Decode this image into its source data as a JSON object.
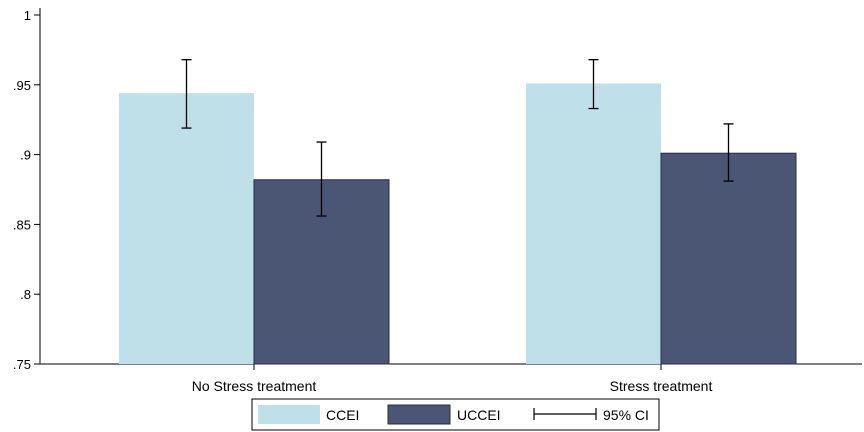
{
  "chart_data": {
    "type": "bar",
    "categories": [
      "No Stress treatment",
      "Stress treatment"
    ],
    "series": [
      {
        "name": "CCEI",
        "color": "#bfe0e8",
        "values": [
          0.944,
          0.951
        ],
        "ci_low": [
          0.919,
          0.933
        ],
        "ci_high": [
          0.968,
          0.968
        ]
      },
      {
        "name": "UCCEI",
        "color": "#4b5574",
        "values": [
          0.882,
          0.901
        ],
        "ci_low": [
          0.856,
          0.881
        ],
        "ci_high": [
          0.909,
          0.922
        ]
      }
    ],
    "ylim": [
      0.75,
      1
    ],
    "yticks": [
      0.75,
      0.8,
      0.85,
      0.9,
      0.95,
      1
    ],
    "ytick_labels": [
      ".75",
      ".8",
      ".85",
      ".9",
      ".95",
      "1"
    ],
    "ci_legend_label": "95% CI",
    "legend_position": "bottom",
    "grid": false,
    "title": "",
    "xlabel": "",
    "ylabel": ""
  }
}
